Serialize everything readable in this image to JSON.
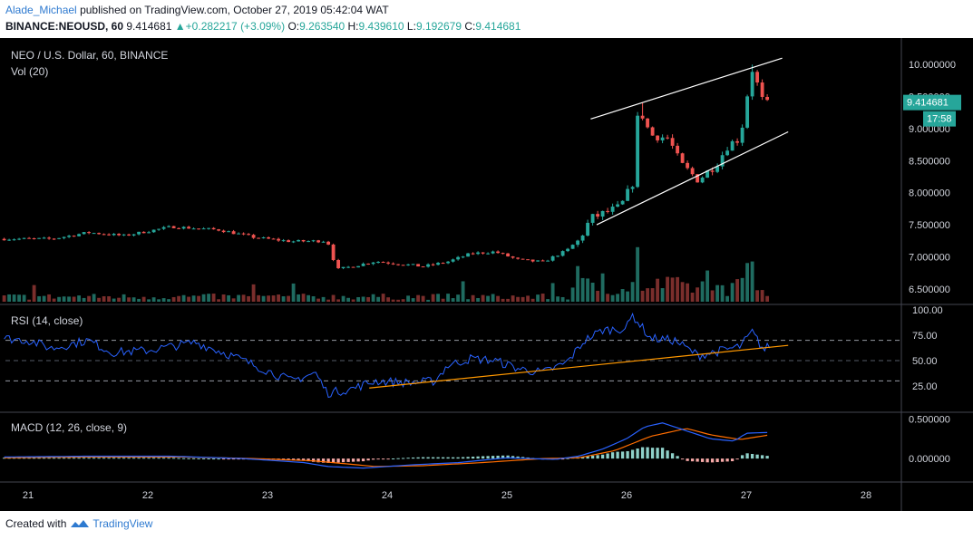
{
  "header": {
    "author": "Alade_Michael",
    "published_text": "published on TradingView.com, October 27, 2019 05:42:04 WAT",
    "symbol": "BINANCE:NEOUSD, 60",
    "last": "9.414681",
    "change_arrow": "▲",
    "change": "+0.282217 (+3.09%)",
    "o_label": "O:",
    "o": "9.263540",
    "h_label": "H:",
    "h": "9.439610",
    "l_label": "L:",
    "l": "9.192679",
    "c_label": "C:",
    "c": "9.414681"
  },
  "footer": {
    "created_with": "Created with",
    "brand": "TradingView"
  },
  "colors": {
    "background": "#000000",
    "up": "#26a69a",
    "down": "#ef5350",
    "rsi": "#2962ff",
    "macd": "#2962ff",
    "signal": "#ff6d00",
    "trend": "#ff9800",
    "channel": "#ffffff",
    "grid": "#1e222d",
    "text": "#d1d4dc"
  },
  "chart_data": [
    {
      "type": "candlestick",
      "title": "NEO / U.S. Dollar, 60, BINANCE",
      "volume_label": "Vol (20)",
      "ylim": [
        6.3,
        10.3
      ],
      "yticks": [
        "10.000000",
        "9.500000",
        "9.000000",
        "8.500000",
        "8.000000",
        "7.500000",
        "7.000000",
        "6.500000"
      ],
      "price_badge": "9.414681",
      "time_badge": "17:58",
      "x_ticks": [
        "21",
        "22",
        "23",
        "24",
        "25",
        "26",
        "27",
        "28"
      ],
      "key_levels": {
        "range_before_rally": [
          7.15,
          7.5
        ],
        "post_drop_low": 6.8,
        "rally_start_day": 25.6,
        "spike_high_day26": 9.35,
        "pullback_low_day26": 8.2,
        "high_day27": 10.0,
        "last_close": 9.414681
      },
      "annotations": [
        {
          "kind": "channel_upper",
          "from": [
            25.7,
            9.15
          ],
          "to": [
            27.3,
            10.1
          ]
        },
        {
          "kind": "channel_lower",
          "from": [
            25.75,
            7.5
          ],
          "to": [
            27.35,
            8.95
          ]
        }
      ]
    },
    {
      "type": "line",
      "title": "RSI (14, close)",
      "ylim": [
        0,
        100
      ],
      "yticks": [
        "100.00",
        "75.00",
        "50.00",
        "25.00"
      ],
      "levels": [
        70,
        50,
        30
      ],
      "key_levels": {
        "low_day23_5": 18,
        "peak_day26": 95,
        "last": 66
      },
      "annotations": [
        {
          "kind": "trendline",
          "from": [
            23.85,
            23
          ],
          "to": [
            27.35,
            65
          ]
        }
      ]
    },
    {
      "type": "line",
      "title": "MACD (12, 26, close, 9)",
      "ylim": [
        -0.25,
        0.55
      ],
      "yticks": [
        "0.500000",
        "0.000000"
      ],
      "key_levels": {
        "macd_peak_day26_3": 0.45,
        "signal_peak_day26_5": 0.38,
        "trough_day23_8": -0.12,
        "last_macd": 0.33,
        "last_signal": 0.3
      }
    }
  ]
}
